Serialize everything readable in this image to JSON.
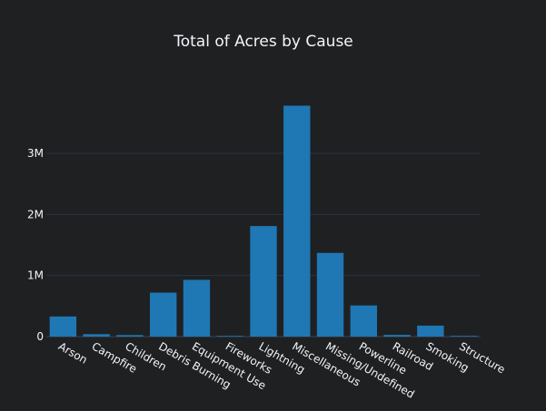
{
  "chart_data": {
    "type": "bar",
    "title": "Total of Acres by Cause",
    "xlabel": "",
    "ylabel": "",
    "categories": [
      "Arson",
      "Campfire",
      "Children",
      "Debris Burning",
      "Equipment Use",
      "Fireworks",
      "Lightning",
      "Miscellaneous",
      "Missing/Undefined",
      "Powerline",
      "Railroad",
      "Smoking",
      "Structure"
    ],
    "values": [
      330000,
      40000,
      25000,
      720000,
      930000,
      8000,
      1810000,
      3780000,
      1370000,
      510000,
      28000,
      180000,
      8000
    ],
    "ylim": [
      0,
      4000000
    ],
    "yticks": [
      {
        "value": 0,
        "label": "0"
      },
      {
        "value": 1000000,
        "label": "1M"
      },
      {
        "value": 2000000,
        "label": "2M"
      },
      {
        "value": 3000000,
        "label": "3M"
      }
    ],
    "grid": true,
    "legend": "none",
    "colors": {
      "bar": "#1f77b4",
      "background": "#1f2022",
      "grid": "#283442",
      "text": "#f2f5fa"
    }
  }
}
